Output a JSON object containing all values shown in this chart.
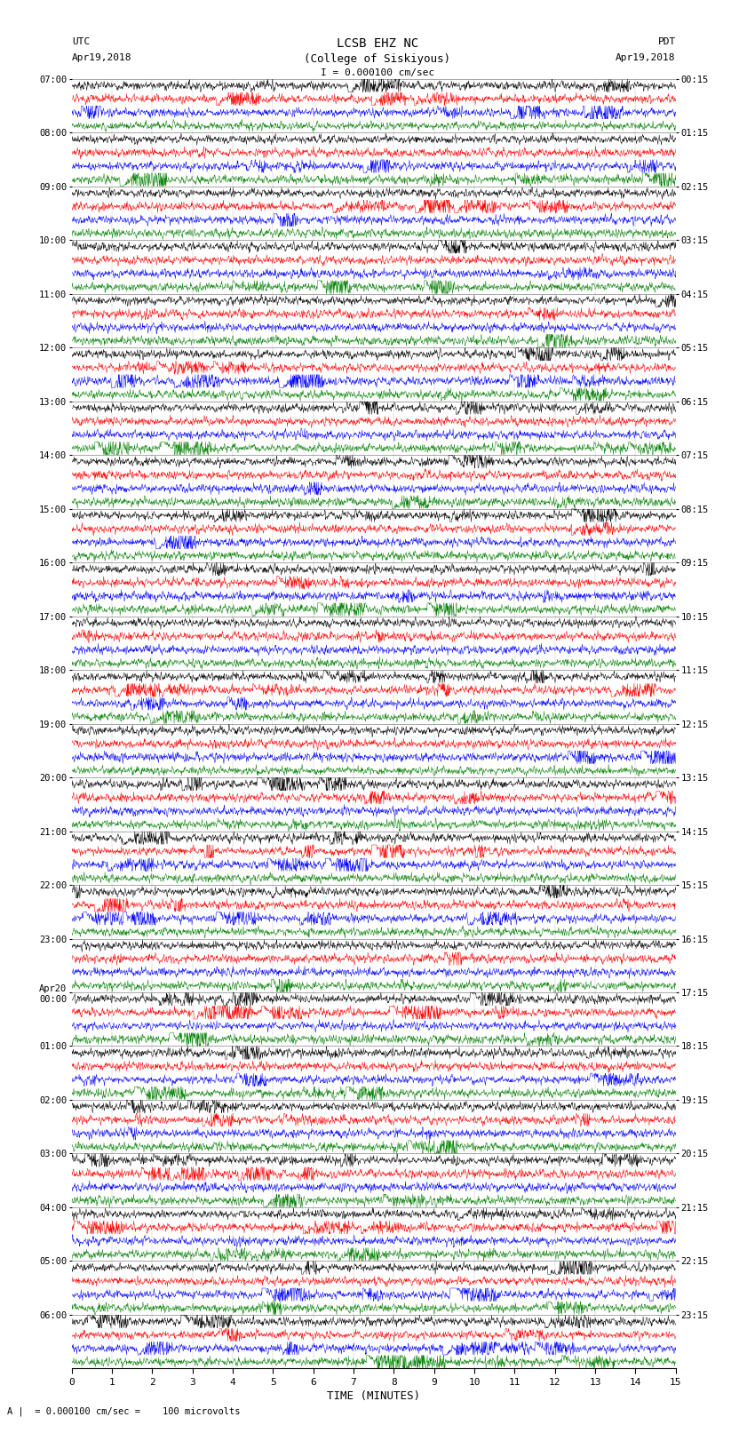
{
  "title_line1": "LCSB EHZ NC",
  "title_line2": "(College of Siskiyous)",
  "scale_bar_label": "I = 0.000100 cm/sec",
  "footer_label": "A |  = 0.000100 cm/sec =    100 microvolts",
  "xlabel": "TIME (MINUTES)",
  "utc_header": "UTC",
  "utc_date": "Apr19,2018",
  "pdt_header": "PDT",
  "pdt_date": "Apr19,2018",
  "utc_times": [
    "07:00",
    "08:00",
    "09:00",
    "10:00",
    "11:00",
    "12:00",
    "13:00",
    "14:00",
    "15:00",
    "16:00",
    "17:00",
    "18:00",
    "19:00",
    "20:00",
    "21:00",
    "22:00",
    "23:00",
    "Apr20\n00:00",
    "01:00",
    "02:00",
    "03:00",
    "04:00",
    "05:00",
    "06:00"
  ],
  "pdt_times": [
    "00:15",
    "01:15",
    "02:15",
    "03:15",
    "04:15",
    "05:15",
    "06:15",
    "07:15",
    "08:15",
    "09:15",
    "10:15",
    "11:15",
    "12:15",
    "13:15",
    "14:15",
    "15:15",
    "16:15",
    "17:15",
    "18:15",
    "19:15",
    "20:15",
    "21:15",
    "22:15",
    "23:15"
  ],
  "trace_colors": [
    "black",
    "red",
    "blue",
    "green"
  ],
  "n_rows": 96,
  "n_points": 1800,
  "bg_color": "white",
  "font_family": "monospace"
}
